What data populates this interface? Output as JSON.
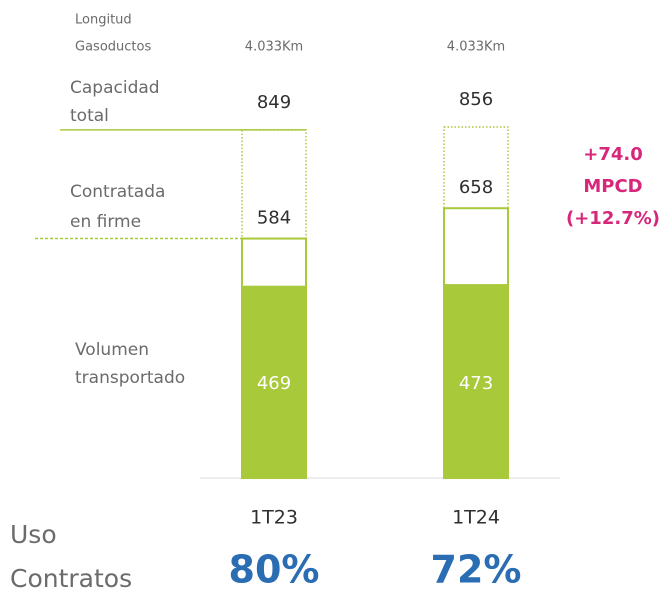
{
  "chart_data": {
    "type": "bar",
    "categories": [
      "1T23",
      "1T24"
    ],
    "length_row": {
      "name": [
        "Longitud",
        "Gasoductos"
      ],
      "values": [
        "4.033Km",
        "4.033Km"
      ]
    },
    "series": [
      {
        "name": [
          "Capacidad",
          "total"
        ],
        "color": "#a8c93a",
        "style": "dotted",
        "values": [
          849,
          856
        ]
      },
      {
        "name": [
          "Contratada",
          "en firme"
        ],
        "color": "#a8c93a",
        "style": "outline",
        "values": [
          584,
          658
        ]
      },
      {
        "name": [
          "Volumen",
          "transportado"
        ],
        "color": "#a8c93a",
        "style": "filled",
        "values": [
          469,
          473
        ]
      }
    ],
    "annotation": {
      "lines": [
        "+74.0",
        "MPCD",
        "(+12.7%)"
      ],
      "color": "#d6277a"
    },
    "usage": {
      "name": [
        "Uso",
        "Contratos"
      ],
      "values": [
        80,
        72
      ],
      "value_labels": [
        "80%",
        "72%"
      ],
      "color": "#2a6db3"
    }
  }
}
